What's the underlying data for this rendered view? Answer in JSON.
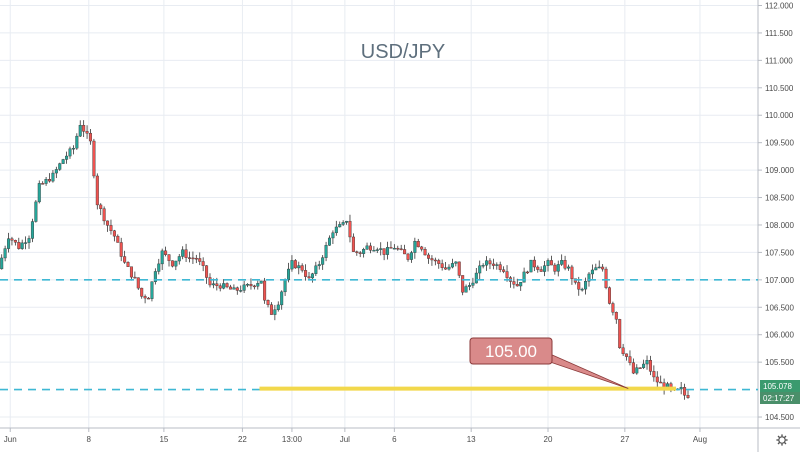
{
  "chart_data": {
    "type": "candlestick",
    "title": "USD/JPY",
    "ylim": [
      104.3,
      112.1
    ],
    "y_ticks": [
      104.5,
      105.5,
      106.0,
      106.5,
      107.0,
      107.5,
      108.0,
      108.5,
      109.0,
      109.5,
      110.0,
      110.5,
      111.0,
      111.5,
      112.0
    ],
    "y_tick_labels": [
      "104.500",
      "105.500",
      "106.000",
      "106.500",
      "107.000",
      "107.500",
      "108.000",
      "108.500",
      "109.000",
      "109.500",
      "110.000",
      "110.500",
      "111.000",
      "111.500",
      "112.000"
    ],
    "x_tick_labels": [
      {
        "label": "Jun",
        "x": 3
      },
      {
        "label": "8",
        "x": 26
      },
      {
        "label": "15",
        "x": 48
      },
      {
        "label": "22",
        "x": 71
      },
      {
        "label": "13:00",
        "x": 85.5
      },
      {
        "label": "Jul",
        "x": 101
      },
      {
        "label": "6",
        "x": 115.5
      },
      {
        "label": "13",
        "x": 138
      },
      {
        "label": "20",
        "x": 160.5
      },
      {
        "label": "27",
        "x": 183
      },
      {
        "label": "Aug",
        "x": 205
      }
    ],
    "x_range": [
      0,
      222
    ],
    "candles_anchor": [
      [
        0,
        107.2
      ],
      [
        3,
        107.8
      ],
      [
        6,
        107.6
      ],
      [
        9,
        107.8
      ],
      [
        12,
        108.7
      ],
      [
        16,
        108.9
      ],
      [
        19,
        109.2
      ],
      [
        22,
        109.4
      ],
      [
        24,
        109.85
      ],
      [
        27,
        109.5
      ],
      [
        29,
        108.4
      ],
      [
        32,
        108.0
      ],
      [
        34,
        107.8
      ],
      [
        37,
        107.3
      ],
      [
        40,
        107.0
      ],
      [
        42,
        106.7
      ],
      [
        44,
        106.7
      ],
      [
        46,
        107.2
      ],
      [
        48,
        107.5
      ],
      [
        51,
        107.3
      ],
      [
        54,
        107.5
      ],
      [
        56,
        107.4
      ],
      [
        58,
        107.4
      ],
      [
        60,
        107.2
      ],
      [
        62,
        106.9
      ],
      [
        65,
        106.9
      ],
      [
        69,
        106.8
      ],
      [
        74,
        106.9
      ],
      [
        77,
        107.0
      ],
      [
        78,
        106.6
      ],
      [
        80,
        106.4
      ],
      [
        82,
        106.6
      ],
      [
        84,
        107.0
      ],
      [
        86,
        107.3
      ],
      [
        89,
        107.2
      ],
      [
        91,
        107.0
      ],
      [
        94,
        107.3
      ],
      [
        96,
        107.6
      ],
      [
        98,
        107.9
      ],
      [
        101,
        108.0
      ],
      [
        102,
        108.1
      ],
      [
        104,
        107.5
      ],
      [
        106,
        107.5
      ],
      [
        108,
        107.6
      ],
      [
        111,
        107.6
      ],
      [
        113,
        107.5
      ],
      [
        116,
        107.6
      ],
      [
        118,
        107.5
      ],
      [
        120,
        107.4
      ],
      [
        122,
        107.7
      ],
      [
        124,
        107.6
      ],
      [
        126,
        107.4
      ],
      [
        129,
        107.3
      ],
      [
        131,
        107.2
      ],
      [
        134,
        107.3
      ],
      [
        136,
        106.8
      ],
      [
        138,
        106.9
      ],
      [
        140,
        107.1
      ],
      [
        142,
        107.3
      ],
      [
        145,
        107.3
      ],
      [
        148,
        107.2
      ],
      [
        150,
        107.0
      ],
      [
        152,
        106.9
      ],
      [
        154,
        107.1
      ],
      [
        156,
        107.3
      ],
      [
        159,
        107.2
      ],
      [
        161,
        107.3
      ],
      [
        163,
        107.2
      ],
      [
        165,
        107.3
      ],
      [
        167,
        107.2
      ],
      [
        169,
        106.9
      ],
      [
        171,
        106.8
      ],
      [
        173,
        107.1
      ],
      [
        175,
        107.2
      ],
      [
        177,
        107.2
      ],
      [
        179,
        106.6
      ],
      [
        181,
        106.3
      ],
      [
        182,
        105.8
      ],
      [
        184,
        105.6
      ],
      [
        186,
        105.3
      ],
      [
        188,
        105.4
      ],
      [
        190,
        105.5
      ],
      [
        192,
        105.2
      ],
      [
        194,
        105.1
      ],
      [
        196,
        105.05
      ],
      [
        198,
        104.95
      ],
      [
        200,
        105.0
      ],
      [
        201,
        104.9
      ]
    ],
    "levels": [
      {
        "name": "level-107",
        "value": 107.0,
        "style": "dashed",
        "color": "#3fb8d4"
      },
      {
        "name": "level-105",
        "value": 105.0,
        "style": "dashed",
        "color": "#3fb8d4"
      }
    ],
    "highlight_line": {
      "value": 105.0,
      "x_start": 76,
      "x_end": 198,
      "color": "#f2d84b"
    },
    "callout": {
      "text": "105.00",
      "points_to": [
        184,
        105.02
      ]
    },
    "price_labels": {
      "last_price": "105.078",
      "countdown": "02:17:27"
    },
    "colors": {
      "up": "#26a69a",
      "down": "#ef5350",
      "level": "#3fb8d4",
      "grid": "#e8ecf2",
      "callout_bg": "#d98a8a",
      "label_bg": "#3a9a6e",
      "title": "#5e6f7d"
    }
  },
  "footer": {
    "gear_icon": "gear-icon"
  }
}
